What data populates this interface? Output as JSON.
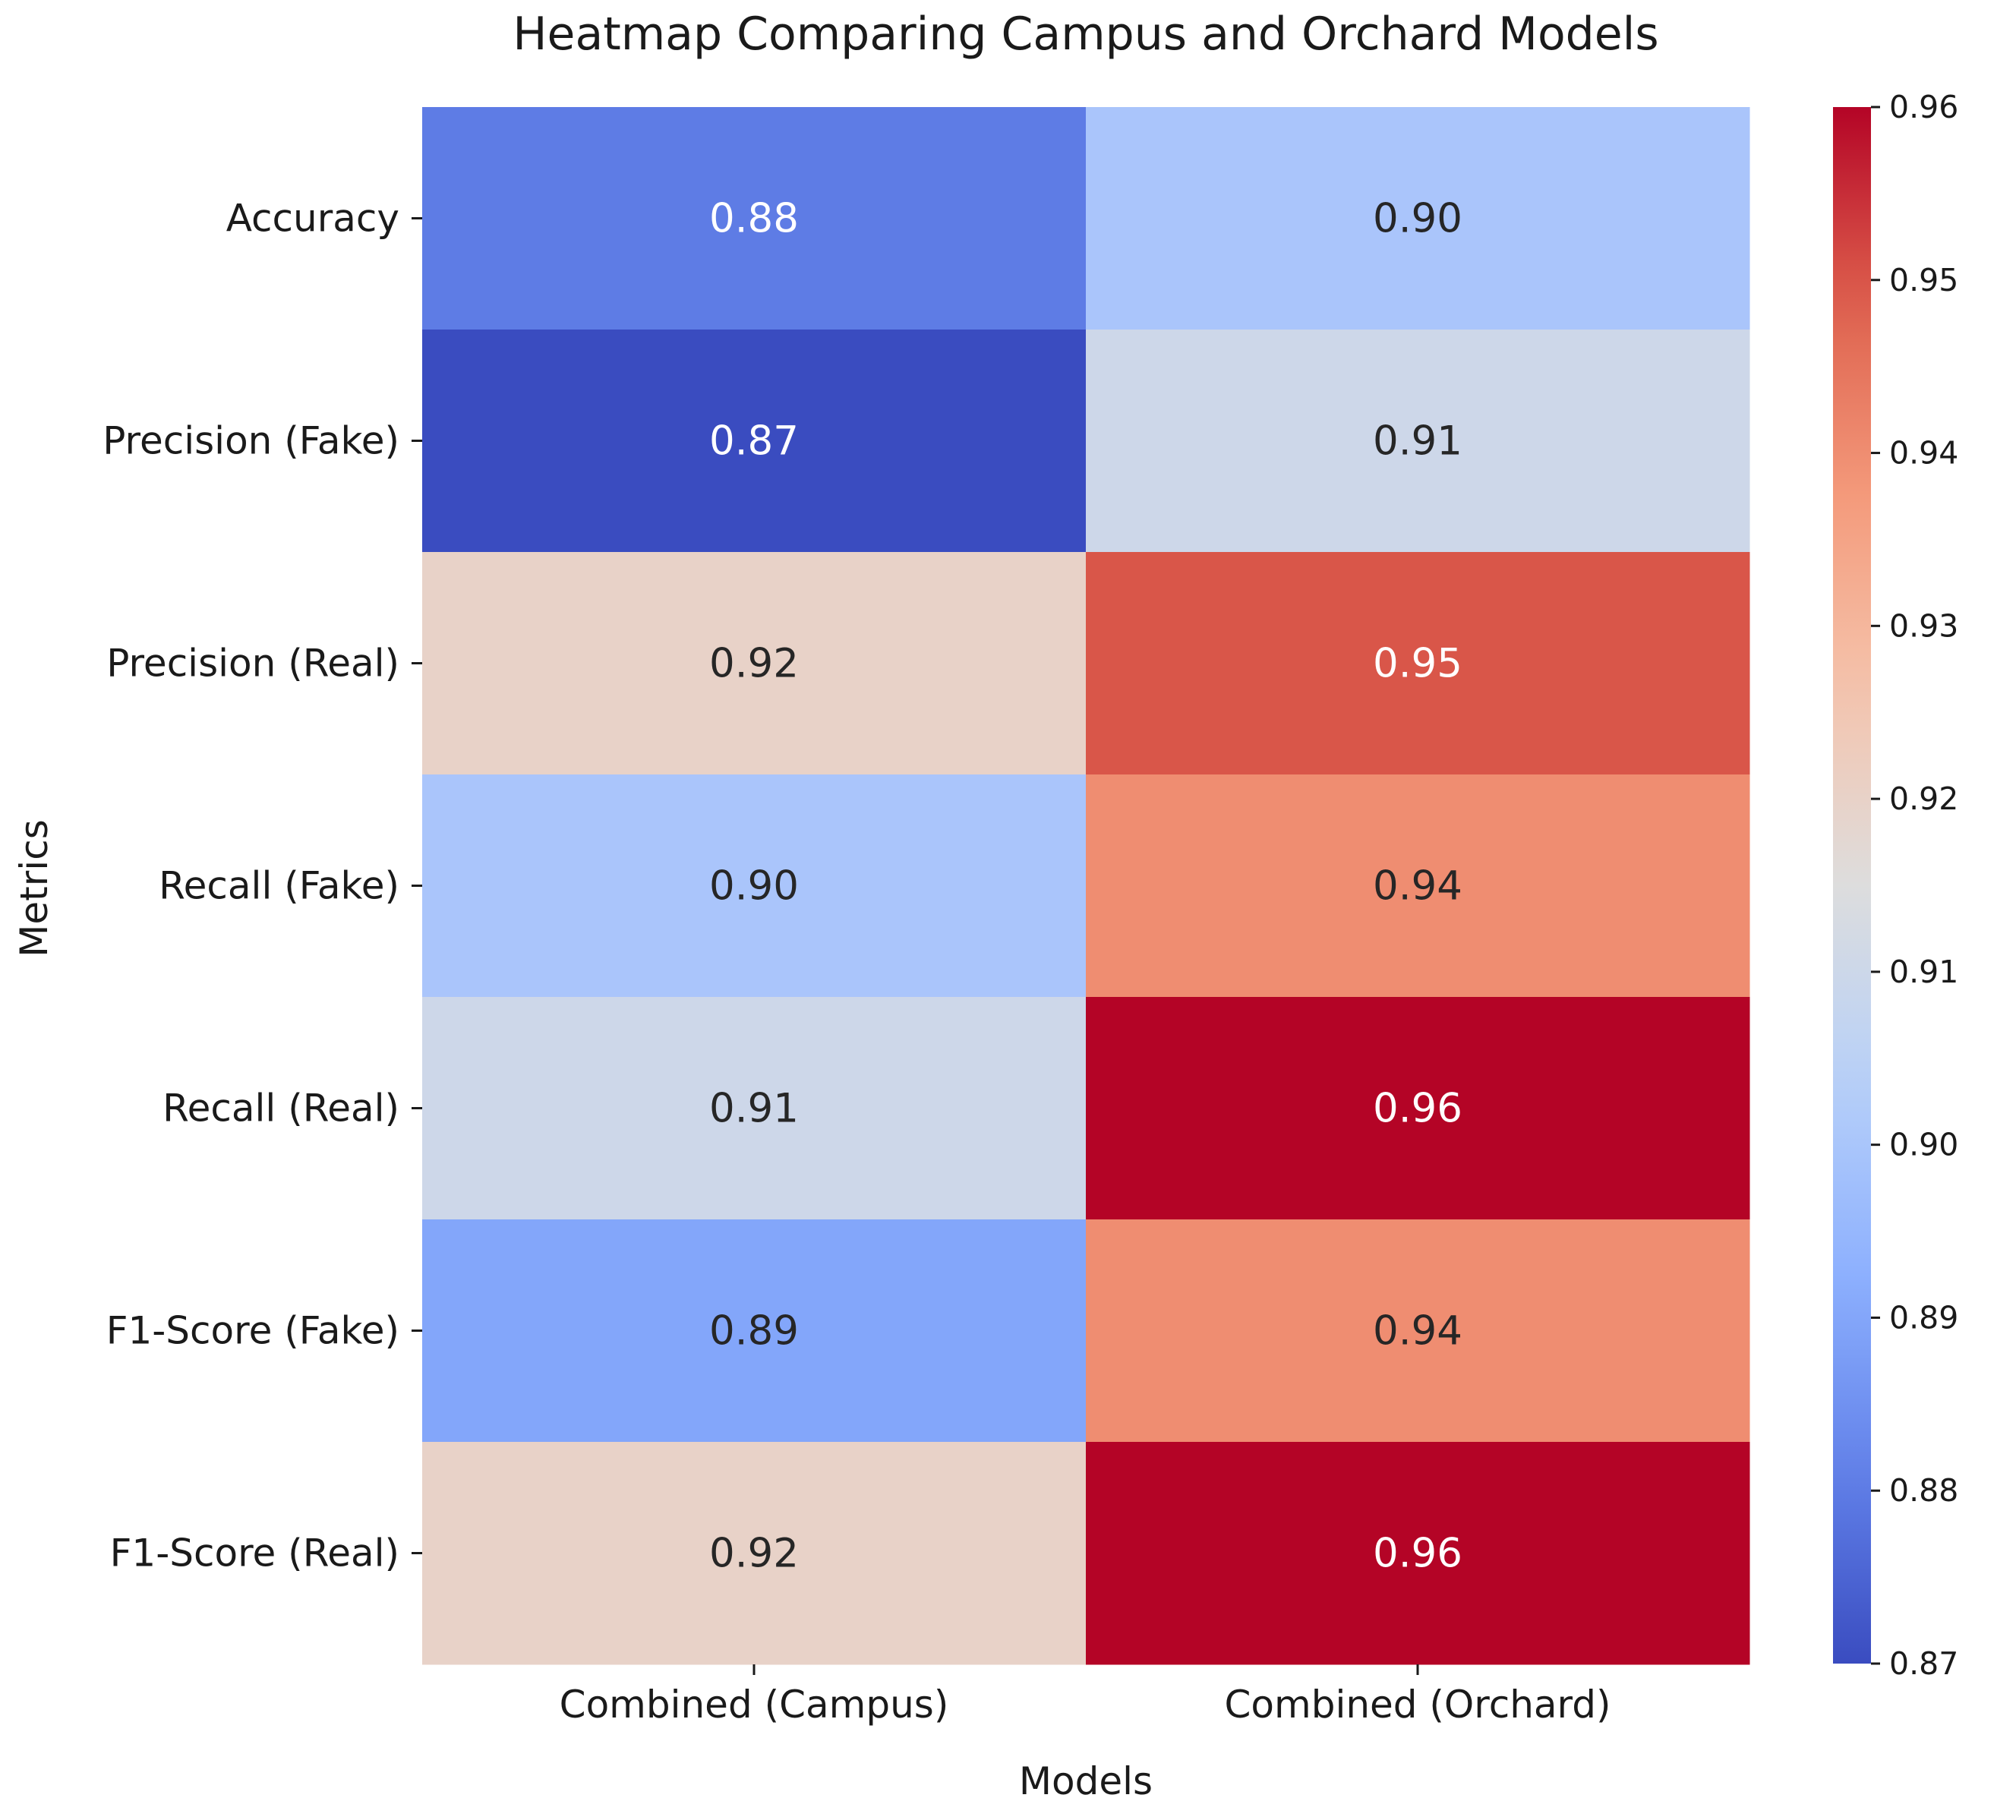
{
  "chart_data": {
    "type": "heatmap",
    "title": "Heatmap Comparing Campus and Orchard Models",
    "xlabel": "Models",
    "ylabel": "Metrics",
    "columns": [
      "Combined (Campus)",
      "Combined (Orchard)"
    ],
    "rows": [
      "Accuracy",
      "Precision (Fake)",
      "Precision (Real)",
      "Recall (Fake)",
      "Recall (Real)",
      "F1-Score (Fake)",
      "F1-Score (Real)"
    ],
    "values": [
      [
        0.88,
        0.9
      ],
      [
        0.87,
        0.91
      ],
      [
        0.92,
        0.95
      ],
      [
        0.9,
        0.94
      ],
      [
        0.91,
        0.96
      ],
      [
        0.89,
        0.94
      ],
      [
        0.92,
        0.96
      ]
    ],
    "value_format": "0.00",
    "colormap": "coolwarm",
    "colorbar": {
      "range": [
        0.87,
        0.96
      ],
      "ticks": [
        "0.87",
        "0.88",
        "0.89",
        "0.90",
        "0.91",
        "0.92",
        "0.93",
        "0.94",
        "0.95",
        "0.96"
      ],
      "position": "right"
    },
    "grid": false
  }
}
